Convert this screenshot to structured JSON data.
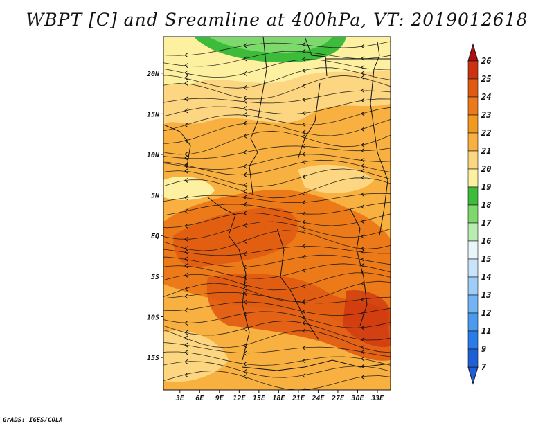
{
  "title": "WBPT [C] and Sreamline at 400hPa, VT: 2019012618",
  "footer": "GrADS: IGES/COLA",
  "map": {
    "lat_ticks": [
      "20N",
      "15N",
      "10N",
      "5N",
      "EQ",
      "5S",
      "10S",
      "15S"
    ],
    "lat_values": [
      20,
      15,
      10,
      5,
      0,
      -5,
      -10,
      -15
    ],
    "lon_ticks": [
      "3E",
      "6E",
      "9E",
      "12E",
      "15E",
      "18E",
      "21E",
      "24E",
      "27E",
      "30E",
      "33E"
    ],
    "lon_values": [
      3,
      6,
      9,
      12,
      15,
      18,
      21,
      24,
      27,
      30,
      33
    ],
    "lat_range": [
      -19,
      24.5
    ],
    "lon_range": [
      0.5,
      35
    ]
  },
  "colorbar": {
    "labels": [
      "7",
      "9",
      "11",
      "12",
      "13",
      "14",
      "15",
      "16",
      "17",
      "18",
      "19",
      "20",
      "21",
      "22",
      "23",
      "24",
      "25",
      "26"
    ],
    "colors": [
      "#1e5fd8",
      "#2a7de8",
      "#4a9bf0",
      "#74b4f5",
      "#a0cdf8",
      "#c8e4fb",
      "#e8f6fa",
      "#b8ecb0",
      "#7ed96c",
      "#3dbb3a",
      "#fdf0a0",
      "#fcd680",
      "#f8b040",
      "#f29a20",
      "#ec7a18",
      "#e05a12",
      "#cc3210",
      "#b01010"
    ],
    "top_arrow_color": "#b01010",
    "bottom_arrow_color": "#1e5fd8"
  }
}
